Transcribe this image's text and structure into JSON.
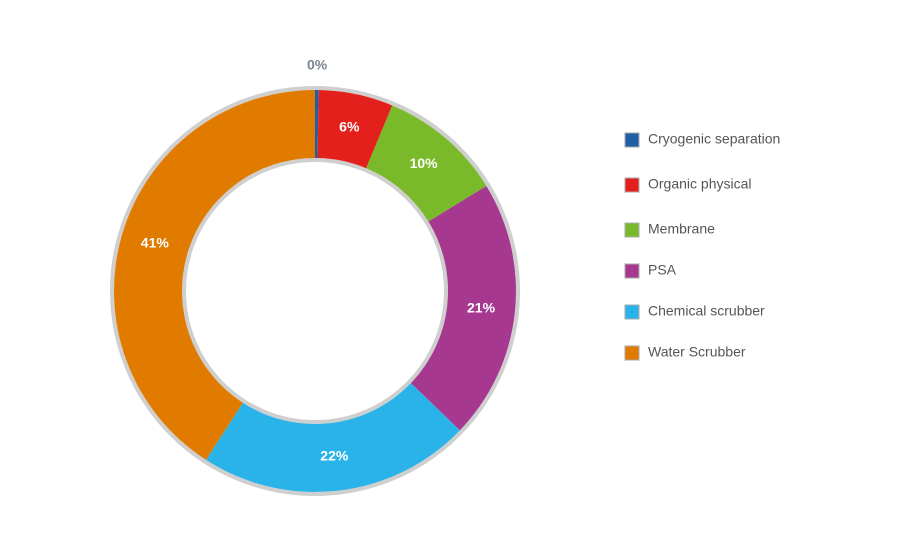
{
  "chart_data": {
    "type": "donut",
    "categories": [
      "Cryogenic separation",
      "Organic physical",
      "Membrane",
      "PSA",
      "Chemical scrubber",
      "Water Scrubber"
    ],
    "values": [
      0.3,
      6,
      10,
      21,
      22,
      41
    ],
    "value_labels": [
      "0%",
      "6%",
      "10%",
      "21%",
      "22%",
      "41%"
    ],
    "colors": [
      "#1f5fa8",
      "#e3201b",
      "#7ab929",
      "#a6398f",
      "#29b3e8",
      "#e07b00"
    ],
    "legend": "right"
  }
}
